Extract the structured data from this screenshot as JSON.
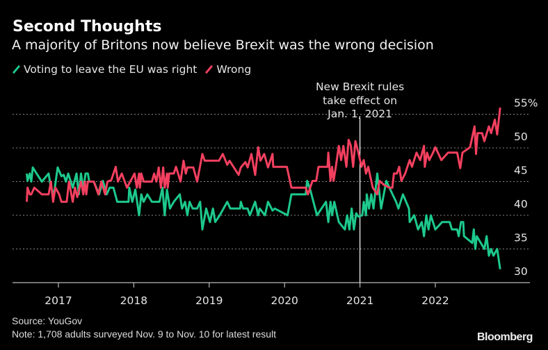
{
  "header": {
    "title": "Second Thoughts",
    "subtitle": "A majority of Britons now believe Brexit was the wrong decision"
  },
  "footer": {
    "source": "Source: YouGov",
    "note": "Note: 1,708 adults surveyed Nov. 9 to Nov. 10 for latest result",
    "logo": "Bloomberg"
  },
  "chart_data": {
    "type": "line",
    "title": "Second Thoughts",
    "subtitle": "A majority of Britons now believe Brexit was the wrong decision",
    "xlabel": "",
    "ylabel": "",
    "xlim": [
      2016.4,
      2023.2
    ],
    "ylim": [
      30,
      55
    ],
    "x_ticks": [
      2017,
      2018,
      2019,
      2020,
      2021,
      2022
    ],
    "x_tick_labels": [
      "2017",
      "2018",
      "2019",
      "2020",
      "2021",
      "2022"
    ],
    "y_ticks": [
      30,
      35,
      40,
      45,
      50,
      55
    ],
    "y_tick_labels": [
      "30",
      "35",
      "40",
      "45",
      "50",
      "55%"
    ],
    "y_axis_side": "right",
    "grid": "horizontal dotted",
    "legend_placement": "top-left",
    "annotation": {
      "x": 2021.0,
      "lines": [
        "New Brexit rules",
        "take effect on",
        "Jan. 1, 2021"
      ]
    },
    "series": [
      {
        "name": "Voting to leave the EU was right",
        "color": "#1dc98c",
        "points": [
          [
            2016.58,
            46.2
          ],
          [
            2016.59,
            45.1
          ],
          [
            2016.62,
            46.2
          ],
          [
            2016.64,
            45
          ],
          [
            2016.66,
            47.1
          ],
          [
            2016.71,
            46.2
          ],
          [
            2016.78,
            45
          ],
          [
            2016.87,
            46.2
          ],
          [
            2016.9,
            44.1
          ],
          [
            2016.94,
            43.1
          ],
          [
            2016.99,
            47.1
          ],
          [
            2017.04,
            45.8
          ],
          [
            2017.07,
            46
          ],
          [
            2017.1,
            45
          ],
          [
            2017.13,
            46.2
          ],
          [
            2017.19,
            44.1
          ],
          [
            2017.24,
            46.2
          ],
          [
            2017.27,
            43.1
          ],
          [
            2017.3,
            46.2
          ],
          [
            2017.33,
            43.8
          ],
          [
            2017.36,
            46.2
          ],
          [
            2017.39,
            46.2
          ],
          [
            2017.41,
            45
          ],
          [
            2017.47,
            45
          ],
          [
            2017.51,
            43.9
          ],
          [
            2017.54,
            43.1
          ],
          [
            2017.59,
            45.1
          ],
          [
            2017.64,
            43.1
          ],
          [
            2017.68,
            44.1
          ],
          [
            2017.73,
            44.1
          ],
          [
            2017.78,
            42
          ],
          [
            2017.93,
            42
          ],
          [
            2017.94,
            44.1
          ],
          [
            2017.98,
            42
          ],
          [
            2018.02,
            43.8
          ],
          [
            2018.07,
            40
          ],
          [
            2018.1,
            43.1
          ],
          [
            2018.13,
            42
          ],
          [
            2018.18,
            43.1
          ],
          [
            2018.24,
            42
          ],
          [
            2018.34,
            42
          ],
          [
            2018.38,
            44.1
          ],
          [
            2018.41,
            40
          ],
          [
            2018.44,
            43.8
          ],
          [
            2018.48,
            41
          ],
          [
            2018.53,
            42
          ],
          [
            2018.61,
            43.1
          ],
          [
            2018.64,
            41
          ],
          [
            2018.68,
            42
          ],
          [
            2018.71,
            40
          ],
          [
            2018.74,
            42
          ],
          [
            2018.78,
            41
          ],
          [
            2018.84,
            41
          ],
          [
            2018.88,
            42
          ],
          [
            2018.91,
            37.9
          ],
          [
            2018.96,
            41
          ],
          [
            2019.01,
            39
          ],
          [
            2019.05,
            41
          ],
          [
            2019.08,
            39
          ],
          [
            2019.14,
            40
          ],
          [
            2019.24,
            42
          ],
          [
            2019.28,
            41
          ],
          [
            2019.41,
            41
          ],
          [
            2019.42,
            42
          ],
          [
            2019.45,
            41
          ],
          [
            2019.51,
            41
          ],
          [
            2019.54,
            40
          ],
          [
            2019.61,
            42
          ],
          [
            2019.65,
            40
          ],
          [
            2019.67,
            41
          ],
          [
            2019.74,
            40
          ],
          [
            2019.78,
            42
          ],
          [
            2019.84,
            40.7
          ],
          [
            2019.87,
            41
          ],
          [
            2020.04,
            40
          ],
          [
            2020.09,
            43.1
          ],
          [
            2020.28,
            43.1
          ],
          [
            2020.3,
            45.1
          ],
          [
            2020.34,
            43.8
          ],
          [
            2020.43,
            40
          ],
          [
            2020.55,
            42
          ],
          [
            2020.58,
            39
          ],
          [
            2020.61,
            42
          ],
          [
            2020.63,
            40
          ],
          [
            2020.66,
            42
          ],
          [
            2020.72,
            39
          ],
          [
            2020.8,
            37.9
          ],
          [
            2020.83,
            40
          ],
          [
            2020.86,
            37.9
          ],
          [
            2020.89,
            41
          ],
          [
            2020.92,
            37.9
          ],
          [
            2020.95,
            40.3
          ],
          [
            2020.98,
            39.8
          ],
          [
            2021.03,
            40
          ],
          [
            2021.05,
            42
          ],
          [
            2021.08,
            40
          ],
          [
            2021.09,
            43.1
          ],
          [
            2021.12,
            41
          ],
          [
            2021.15,
            43.1
          ],
          [
            2021.18,
            41
          ],
          [
            2021.23,
            46.2
          ],
          [
            2021.28,
            41
          ],
          [
            2021.35,
            45.1
          ],
          [
            2021.42,
            43.4
          ],
          [
            2021.48,
            42
          ],
          [
            2021.51,
            41
          ],
          [
            2021.57,
            43.1
          ],
          [
            2021.65,
            41
          ],
          [
            2021.66,
            39
          ],
          [
            2021.72,
            40
          ],
          [
            2021.77,
            37.9
          ],
          [
            2021.82,
            39
          ],
          [
            2021.85,
            36.9
          ],
          [
            2021.88,
            40
          ],
          [
            2021.91,
            37.9
          ],
          [
            2021.94,
            40
          ],
          [
            2022.0,
            37.9
          ],
          [
            2022.09,
            39
          ],
          [
            2022.19,
            39
          ],
          [
            2022.22,
            37.9
          ],
          [
            2022.29,
            37.9
          ],
          [
            2022.31,
            36.9
          ],
          [
            2022.34,
            39
          ],
          [
            2022.37,
            39
          ],
          [
            2022.38,
            36.9
          ],
          [
            2022.49,
            35.9
          ],
          [
            2022.51,
            37.9
          ],
          [
            2022.53,
            35
          ],
          [
            2022.55,
            36.9
          ],
          [
            2022.65,
            35
          ],
          [
            2022.68,
            36.9
          ],
          [
            2022.71,
            34
          ],
          [
            2022.74,
            35
          ],
          [
            2022.77,
            34
          ],
          [
            2022.82,
            35
          ],
          [
            2022.86,
            32
          ]
        ]
      },
      {
        "name": "Wrong",
        "color": "#f3405f",
        "points": [
          [
            2016.58,
            42
          ],
          [
            2016.59,
            44.1
          ],
          [
            2016.62,
            43.1
          ],
          [
            2016.64,
            43.1
          ],
          [
            2016.68,
            44.1
          ],
          [
            2016.78,
            43.1
          ],
          [
            2016.87,
            43.1
          ],
          [
            2016.9,
            45
          ],
          [
            2016.93,
            42
          ],
          [
            2016.96,
            44.1
          ],
          [
            2017.01,
            43.1
          ],
          [
            2017.04,
            42
          ],
          [
            2017.11,
            42
          ],
          [
            2017.14,
            45
          ],
          [
            2017.19,
            42
          ],
          [
            2017.22,
            44.1
          ],
          [
            2017.25,
            42.7
          ],
          [
            2017.3,
            45
          ],
          [
            2017.33,
            43.1
          ],
          [
            2017.35,
            45
          ],
          [
            2017.37,
            43.1
          ],
          [
            2017.39,
            45
          ],
          [
            2017.47,
            45
          ],
          [
            2017.53,
            43.1
          ],
          [
            2017.57,
            45
          ],
          [
            2017.62,
            43.1
          ],
          [
            2017.65,
            45
          ],
          [
            2017.7,
            45.2
          ],
          [
            2017.76,
            47.2
          ],
          [
            2017.79,
            45
          ],
          [
            2017.84,
            46.2
          ],
          [
            2017.88,
            45
          ],
          [
            2017.91,
            44.1
          ],
          [
            2018.01,
            46.2
          ],
          [
            2018.04,
            44.1
          ],
          [
            2018.07,
            46.2
          ],
          [
            2018.08,
            44.1
          ],
          [
            2018.1,
            46.2
          ],
          [
            2018.13,
            45
          ],
          [
            2018.24,
            45
          ],
          [
            2018.27,
            46.2
          ],
          [
            2018.3,
            45
          ],
          [
            2018.33,
            47.1
          ],
          [
            2018.36,
            44.1
          ],
          [
            2018.39,
            47.1
          ],
          [
            2018.41,
            44.1
          ],
          [
            2018.44,
            46.2
          ],
          [
            2018.45,
            44.1
          ],
          [
            2018.47,
            46.2
          ],
          [
            2018.53,
            46.2
          ],
          [
            2018.56,
            47.2
          ],
          [
            2018.62,
            45
          ],
          [
            2018.66,
            48.1
          ],
          [
            2018.69,
            46.2
          ],
          [
            2018.71,
            47.1
          ],
          [
            2018.79,
            47.1
          ],
          [
            2018.84,
            45
          ],
          [
            2018.91,
            49.1
          ],
          [
            2018.94,
            48.1
          ],
          [
            2019.13,
            48.1
          ],
          [
            2019.18,
            49.1
          ],
          [
            2019.24,
            47.5
          ],
          [
            2019.27,
            48.1
          ],
          [
            2019.39,
            46
          ],
          [
            2019.42,
            47.1
          ],
          [
            2019.48,
            47.9
          ],
          [
            2019.51,
            47.1
          ],
          [
            2019.56,
            49.1
          ],
          [
            2019.61,
            46
          ],
          [
            2019.65,
            50.1
          ],
          [
            2019.68,
            48.1
          ],
          [
            2019.73,
            49.1
          ],
          [
            2019.78,
            47.1
          ],
          [
            2019.84,
            49.1
          ],
          [
            2019.85,
            47.2
          ],
          [
            2020.03,
            47.2
          ],
          [
            2020.09,
            44.1
          ],
          [
            2020.28,
            44.1
          ],
          [
            2020.31,
            43.1
          ],
          [
            2020.37,
            45.1
          ],
          [
            2020.42,
            45.1
          ],
          [
            2020.45,
            47.2
          ],
          [
            2020.57,
            47.2
          ],
          [
            2020.58,
            49.3
          ],
          [
            2020.61,
            45.1
          ],
          [
            2020.63,
            47.2
          ],
          [
            2020.65,
            45.1
          ],
          [
            2020.68,
            47.2
          ],
          [
            2020.72,
            50.3
          ],
          [
            2020.75,
            48.2
          ],
          [
            2020.78,
            50.3
          ],
          [
            2020.82,
            47.2
          ],
          [
            2020.85,
            51.2
          ],
          [
            2020.88,
            50.3
          ],
          [
            2020.91,
            47.2
          ],
          [
            2020.94,
            51
          ],
          [
            2020.98,
            49.3
          ],
          [
            2021.02,
            47.2
          ],
          [
            2021.05,
            48.2
          ],
          [
            2021.08,
            46.2
          ],
          [
            2021.11,
            47.2
          ],
          [
            2021.17,
            44.1
          ],
          [
            2021.23,
            43.1
          ],
          [
            2021.26,
            45.1
          ],
          [
            2021.32,
            44.5
          ],
          [
            2021.39,
            44.1
          ],
          [
            2021.43,
            44.1
          ],
          [
            2021.45,
            46.2
          ],
          [
            2021.49,
            46.2
          ],
          [
            2021.52,
            47.2
          ],
          [
            2021.55,
            45.1
          ],
          [
            2021.6,
            46.2
          ],
          [
            2021.66,
            48.2
          ],
          [
            2021.69,
            47.2
          ],
          [
            2021.75,
            49.3
          ],
          [
            2021.8,
            48.2
          ],
          [
            2021.85,
            50.3
          ],
          [
            2021.86,
            47.2
          ],
          [
            2021.89,
            49.3
          ],
          [
            2021.92,
            48.2
          ],
          [
            2021.97,
            49.3
          ],
          [
            2022.0,
            50.1
          ],
          [
            2022.08,
            48.2
          ],
          [
            2022.17,
            49.3
          ],
          [
            2022.29,
            49.3
          ],
          [
            2022.33,
            47
          ],
          [
            2022.36,
            49.3
          ],
          [
            2022.46,
            50.1
          ],
          [
            2022.52,
            53.2
          ],
          [
            2022.54,
            49.1
          ],
          [
            2022.56,
            52.2
          ],
          [
            2022.62,
            52.2
          ],
          [
            2022.65,
            51
          ],
          [
            2022.71,
            53.2
          ],
          [
            2022.74,
            52.2
          ],
          [
            2022.79,
            54.2
          ],
          [
            2022.82,
            52
          ],
          [
            2022.86,
            56
          ]
        ]
      }
    ]
  }
}
